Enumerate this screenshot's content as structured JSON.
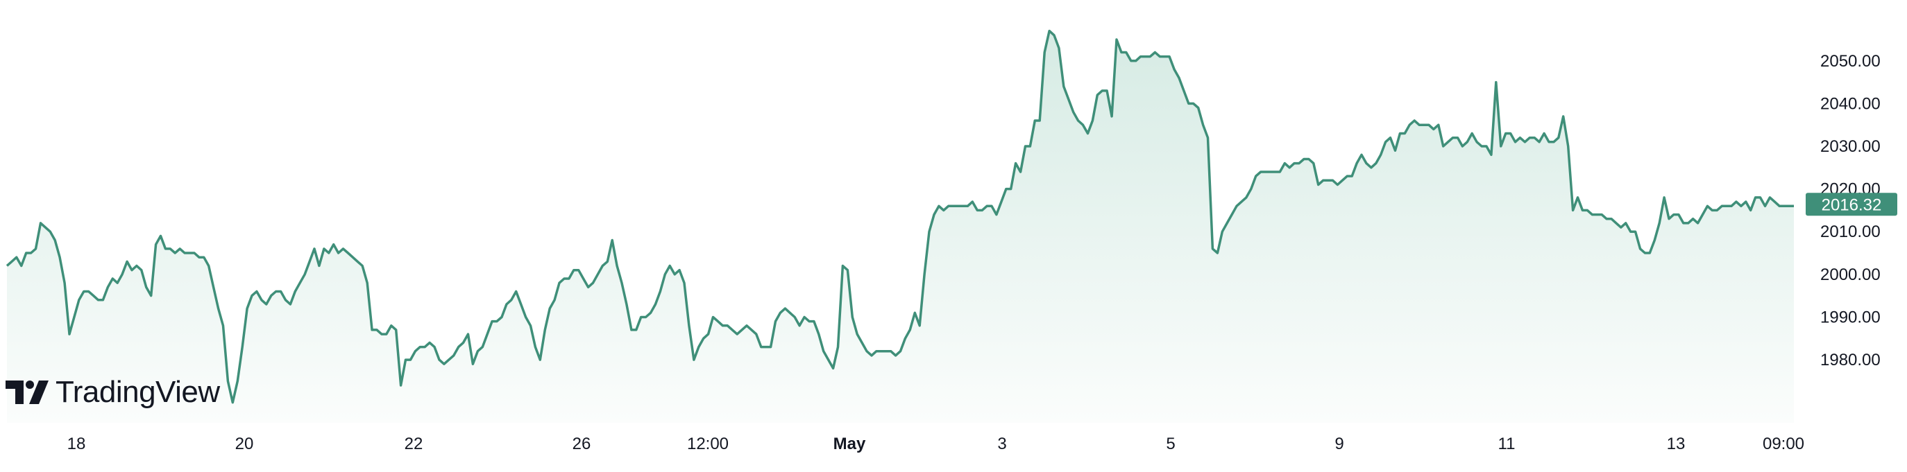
{
  "brand": {
    "name": "TradingView",
    "icon": "tradingview-logo-icon"
  },
  "colors": {
    "line": "#3f8f79",
    "fill_top": "#d6ebe4",
    "fill_bottom": "#fbfdfc",
    "badge": "#3f8f79",
    "text": "#131722"
  },
  "price_badge": {
    "value": "2016.32"
  },
  "chart_data": {
    "type": "area",
    "title": "",
    "xlabel": "",
    "ylabel": "",
    "grid": false,
    "ylim": [
      1968,
      2061
    ],
    "x_ticks": [
      "18",
      "20",
      "22",
      "26",
      "12:00",
      "May",
      "3",
      "5",
      "9",
      "11",
      "13",
      "09:00"
    ],
    "y_ticks": [
      "2050.00",
      "2040.00",
      "2030.00",
      "2020.00",
      "2010.00",
      "2000.00",
      "1990.00",
      "1980.00"
    ],
    "y_tick_values": [
      2050,
      2040,
      2030,
      2020,
      2010,
      2000,
      1990,
      1980
    ],
    "last_value": 2016.32,
    "series": [
      {
        "values": [
          2002,
          2003,
          2004,
          2002,
          2005,
          2005,
          2006,
          2012,
          2011,
          2010,
          2008,
          2004,
          1998,
          1986,
          1990,
          1994,
          1996,
          1996,
          1995,
          1994,
          1994,
          1997,
          1999,
          1998,
          2000,
          2003,
          2001,
          2002,
          2001,
          1997,
          1995,
          2007,
          2009,
          2006,
          2006,
          2005,
          2006,
          2005,
          2005,
          2005,
          2004,
          2004,
          2002,
          1997,
          1992,
          1988,
          1975,
          1970,
          1975,
          1983,
          1992,
          1995,
          1996,
          1994,
          1993,
          1995,
          1996,
          1996,
          1994,
          1993,
          1996,
          1998,
          2000,
          2003,
          2006,
          2002,
          2006,
          2005,
          2007,
          2005,
          2006,
          2005,
          2004,
          2003,
          2002,
          1998,
          1987,
          1987,
          1986,
          1986,
          1988,
          1987,
          1974,
          1980,
          1980,
          1982,
          1983,
          1983,
          1984,
          1983,
          1980,
          1979,
          1980,
          1981,
          1983,
          1984,
          1986,
          1979,
          1982,
          1983,
          1986,
          1989,
          1989,
          1990,
          1993,
          1994,
          1996,
          1993,
          1990,
          1988,
          1983,
          1980,
          1987,
          1992,
          1994,
          1998,
          1999,
          1999,
          2001,
          2001,
          1999,
          1997,
          1998,
          2000,
          2002,
          2003,
          2008,
          2002,
          1998,
          1993,
          1987,
          1987,
          1990,
          1990,
          1991,
          1993,
          1996,
          2000,
          2002,
          2000,
          2001,
          1998,
          1988,
          1980,
          1983,
          1985,
          1986,
          1990,
          1989,
          1988,
          1988,
          1987,
          1986,
          1987,
          1988,
          1987,
          1986,
          1983,
          1983,
          1983,
          1989,
          1991,
          1992,
          1991,
          1990,
          1988,
          1990,
          1989,
          1989,
          1986,
          1982,
          1980,
          1978,
          1983,
          2002,
          2001,
          1990,
          1986,
          1984,
          1982,
          1981,
          1982,
          1982,
          1982,
          1982,
          1981,
          1982,
          1985,
          1987,
          1991,
          1988,
          2000,
          2010,
          2014,
          2016,
          2015,
          2016,
          2016,
          2016,
          2016,
          2016,
          2017,
          2015,
          2015,
          2016,
          2016,
          2014,
          2017,
          2020,
          2020,
          2026,
          2024,
          2030,
          2030,
          2036,
          2036,
          2052,
          2057,
          2056,
          2053,
          2044,
          2041,
          2038,
          2036,
          2035,
          2033,
          2036,
          2042,
          2043,
          2043,
          2037,
          2055,
          2052,
          2052,
          2050,
          2050,
          2051,
          2051,
          2051,
          2052,
          2051,
          2051,
          2051,
          2048,
          2046,
          2043,
          2040,
          2040,
          2039,
          2035,
          2032,
          2006,
          2005,
          2010,
          2012,
          2014,
          2016,
          2017,
          2018,
          2020,
          2023,
          2024,
          2024,
          2024,
          2024,
          2024,
          2026,
          2025,
          2026,
          2026,
          2027,
          2027,
          2026,
          2021,
          2022,
          2022,
          2022,
          2021,
          2022,
          2023,
          2023,
          2026,
          2028,
          2026,
          2025,
          2026,
          2028,
          2031,
          2032,
          2029,
          2033,
          2033,
          2035,
          2036,
          2035,
          2035,
          2035,
          2034,
          2035,
          2030,
          2031,
          2032,
          2032,
          2030,
          2031,
          2033,
          2031,
          2030,
          2030,
          2028,
          2045,
          2030,
          2033,
          2033,
          2031,
          2032,
          2031,
          2032,
          2032,
          2031,
          2033,
          2031,
          2031,
          2032,
          2037,
          2030,
          2015,
          2018,
          2015,
          2015,
          2014,
          2014,
          2014,
          2013,
          2013,
          2012,
          2011,
          2012,
          2010,
          2010,
          2006,
          2005,
          2005,
          2008,
          2012,
          2018,
          2013,
          2014,
          2014,
          2012,
          2012,
          2013,
          2012,
          2014,
          2016,
          2015,
          2015,
          2016,
          2016,
          2016,
          2017,
          2016,
          2017,
          2015,
          2018,
          2018,
          2016,
          2018,
          2017,
          2016,
          2016,
          2016,
          2016
        ]
      }
    ]
  }
}
